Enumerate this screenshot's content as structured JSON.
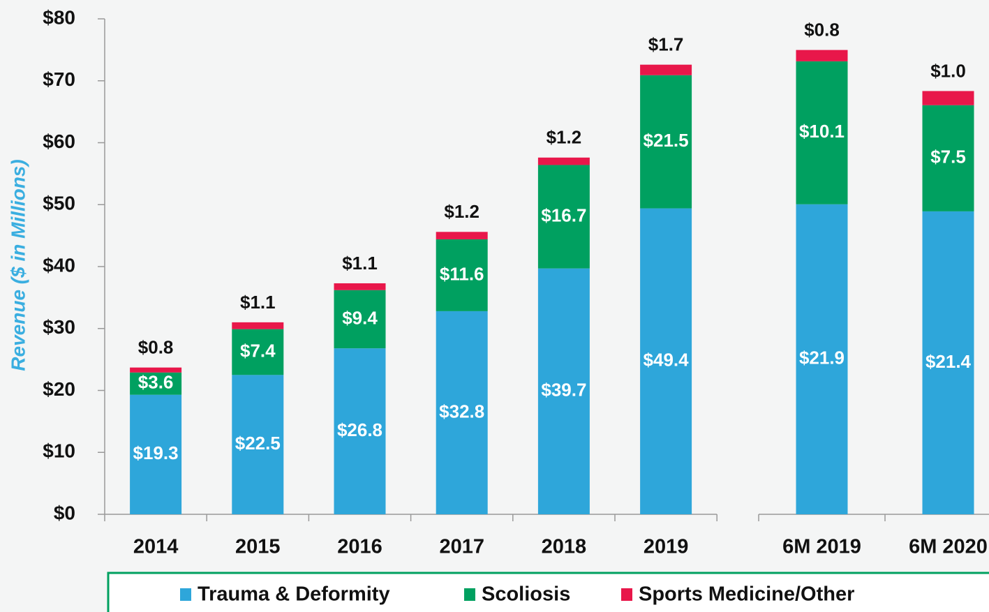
{
  "chart_data": [
    {
      "type": "stacked-bar",
      "y_label": "Revenue ($ in Millions)",
      "categories": [
        "2014",
        "2015",
        "2016",
        "2017",
        "2018",
        "2019"
      ],
      "series": [
        {
          "name": "Trauma & Deformity",
          "color": "#2ea6da",
          "values": [
            19.3,
            22.5,
            26.8,
            32.8,
            39.7,
            49.4
          ],
          "value_labels": [
            "$19.3",
            "$22.5",
            "$26.8",
            "$32.8",
            "$39.7",
            "$49.4"
          ]
        },
        {
          "name": "Scoliosis",
          "color": "#00a060",
          "values": [
            3.6,
            7.4,
            9.4,
            11.6,
            16.7,
            21.5
          ],
          "value_labels": [
            "$3.6",
            "$7.4",
            "$9.4",
            "$11.6",
            "$16.7",
            "$21.5"
          ]
        },
        {
          "name": "Sports Medicine/Other",
          "color": "#e8174a",
          "values": [
            0.8,
            1.1,
            1.1,
            1.2,
            1.2,
            1.7
          ],
          "value_labels": [
            "$0.8",
            "$1.1",
            "$1.1",
            "$1.2",
            "$1.2",
            "$1.7"
          ]
        }
      ],
      "ylim": [
        0,
        80
      ],
      "yticks": [
        {
          "value": 0,
          "label": "$0"
        },
        {
          "value": 10,
          "label": "$10"
        },
        {
          "value": 20,
          "label": "$20"
        },
        {
          "value": 30,
          "label": "$30"
        },
        {
          "value": 40,
          "label": "$40"
        },
        {
          "value": 50,
          "label": "$50"
        },
        {
          "value": 60,
          "label": "$60"
        },
        {
          "value": 70,
          "label": "$70"
        },
        {
          "value": 80,
          "label": "$80"
        }
      ]
    },
    {
      "type": "stacked-bar",
      "categories": [
        "6M 2019",
        "6M 2020"
      ],
      "series": [
        {
          "color": "#2ea6da",
          "values": [
            21.9,
            21.4
          ],
          "value_labels": [
            "$21.9",
            "$21.4"
          ]
        },
        {
          "color": "#00a060",
          "values": [
            10.1,
            7.5
          ],
          "value_labels": [
            "$10.1",
            "$7.5"
          ]
        },
        {
          "color": "#e8174a",
          "values": [
            0.8,
            1.0
          ],
          "value_labels": [
            "$0.8",
            "$1.0"
          ]
        }
      ],
      "ylim": [
        0,
        35
      ]
    }
  ]
}
